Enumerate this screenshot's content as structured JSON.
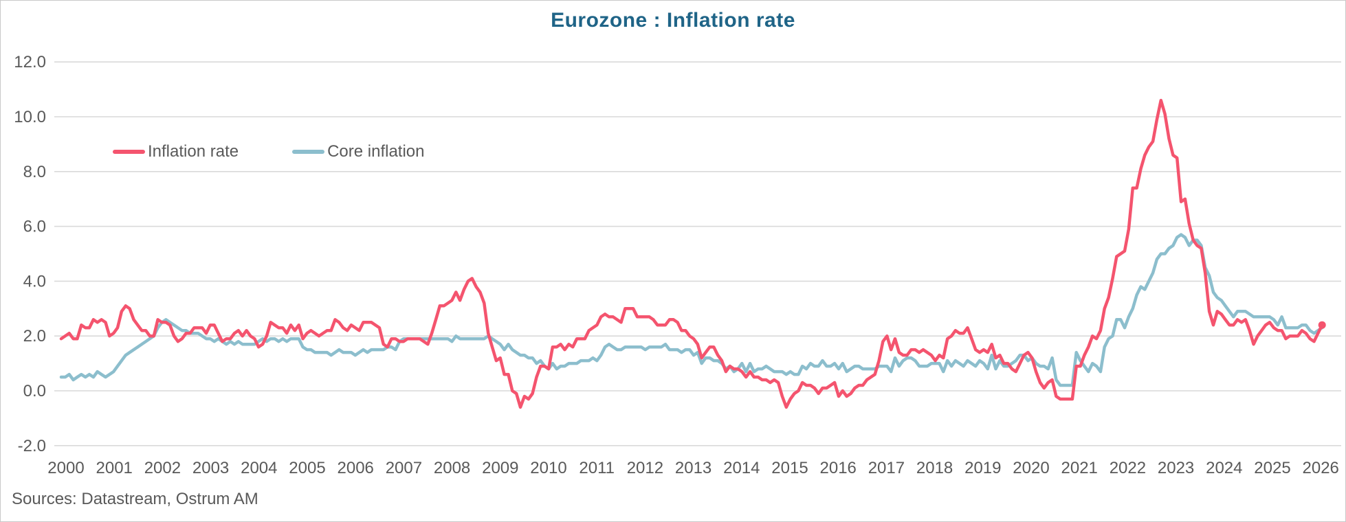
{
  "page": {
    "title": "Eurozone : Inflation rate",
    "source_note": "Sources: Datastream, Ostrum AM"
  },
  "colors": {
    "title": "#1f6487",
    "inflation_rate": "#f4546e",
    "core_inflation": "#8cbecd",
    "axis_text": "#595959",
    "gridline": "#d9d9d9",
    "frame_border": "#c9c9c9"
  },
  "legend": [
    {
      "label": "Inflation rate",
      "color": "#f4546e"
    },
    {
      "label": "Core inflation",
      "color": "#8cbecd"
    }
  ],
  "chart_data": {
    "type": "line",
    "title": "Eurozone : Inflation rate",
    "xlabel": "",
    "ylabel": "",
    "x_unit": "month",
    "x_start": "2000-01",
    "x_end": "2026-02",
    "x_tick_labels": [
      "2000",
      "2001",
      "2002",
      "2003",
      "2004",
      "2005",
      "2006",
      "2007",
      "2008",
      "2009",
      "2010",
      "2011",
      "2012",
      "2013",
      "2014",
      "2015",
      "2016",
      "2017",
      "2018",
      "2019",
      "2020",
      "2021",
      "2022",
      "2023",
      "2024",
      "2025",
      "2026"
    ],
    "y_ticks": [
      12.0,
      10.0,
      8.0,
      6.0,
      4.0,
      2.0,
      0.0,
      -2.0
    ],
    "y_tick_labels": [
      "12.0",
      "10.0",
      "8.0",
      "6.0",
      "4.0",
      "2.0",
      "0.0",
      "-2.0"
    ],
    "ylim": [
      -2.0,
      12.0
    ],
    "grid": "horizontal",
    "legend_position": "inside-top-left",
    "series": [
      {
        "name": "Inflation rate",
        "color": "#f4546e",
        "line_width": 4.5,
        "end_marker": true,
        "values": [
          1.9,
          2.0,
          2.1,
          1.9,
          1.9,
          2.4,
          2.3,
          2.3,
          2.6,
          2.5,
          2.6,
          2.5,
          2.0,
          2.1,
          2.3,
          2.9,
          3.1,
          3.0,
          2.6,
          2.4,
          2.2,
          2.2,
          2.0,
          2.0,
          2.6,
          2.5,
          2.5,
          2.4,
          2.0,
          1.8,
          1.9,
          2.1,
          2.1,
          2.3,
          2.3,
          2.3,
          2.1,
          2.4,
          2.4,
          2.1,
          1.8,
          1.9,
          1.9,
          2.1,
          2.2,
          2.0,
          2.2,
          2.0,
          1.9,
          1.6,
          1.7,
          2.0,
          2.5,
          2.4,
          2.3,
          2.3,
          2.1,
          2.4,
          2.2,
          2.4,
          1.9,
          2.1,
          2.2,
          2.1,
          2.0,
          2.1,
          2.2,
          2.2,
          2.6,
          2.5,
          2.3,
          2.2,
          2.4,
          2.3,
          2.2,
          2.5,
          2.5,
          2.5,
          2.4,
          2.3,
          1.7,
          1.6,
          1.9,
          1.9,
          1.8,
          1.8,
          1.9,
          1.9,
          1.9,
          1.9,
          1.8,
          1.7,
          2.1,
          2.6,
          3.1,
          3.1,
          3.2,
          3.3,
          3.6,
          3.3,
          3.7,
          4.0,
          4.1,
          3.8,
          3.6,
          3.2,
          2.1,
          1.6,
          1.1,
          1.2,
          0.6,
          0.6,
          0.0,
          -0.1,
          -0.6,
          -0.2,
          -0.3,
          -0.1,
          0.5,
          0.9,
          0.9,
          0.8,
          1.6,
          1.6,
          1.7,
          1.5,
          1.7,
          1.6,
          1.9,
          1.9,
          1.9,
          2.2,
          2.3,
          2.4,
          2.7,
          2.8,
          2.7,
          2.7,
          2.6,
          2.5,
          3.0,
          3.0,
          3.0,
          2.7,
          2.7,
          2.7,
          2.7,
          2.6,
          2.4,
          2.4,
          2.4,
          2.6,
          2.6,
          2.5,
          2.2,
          2.2,
          2.0,
          1.9,
          1.7,
          1.2,
          1.4,
          1.6,
          1.6,
          1.3,
          1.1,
          0.7,
          0.9,
          0.8,
          0.8,
          0.7,
          0.5,
          0.7,
          0.5,
          0.5,
          0.4,
          0.4,
          0.3,
          0.4,
          0.3,
          -0.2,
          -0.6,
          -0.3,
          -0.1,
          0.0,
          0.3,
          0.2,
          0.2,
          0.1,
          -0.1,
          0.1,
          0.1,
          0.2,
          0.3,
          -0.2,
          0.0,
          -0.2,
          -0.1,
          0.1,
          0.2,
          0.2,
          0.4,
          0.5,
          0.6,
          1.1,
          1.8,
          2.0,
          1.5,
          1.9,
          1.4,
          1.3,
          1.3,
          1.5,
          1.5,
          1.4,
          1.5,
          1.4,
          1.3,
          1.1,
          1.3,
          1.2,
          1.9,
          2.0,
          2.2,
          2.1,
          2.1,
          2.3,
          1.9,
          1.5,
          1.4,
          1.5,
          1.4,
          1.7,
          1.2,
          1.3,
          1.0,
          1.0,
          0.8,
          0.7,
          1.0,
          1.3,
          1.4,
          1.2,
          0.7,
          0.3,
          0.1,
          0.3,
          0.4,
          -0.2,
          -0.3,
          -0.3,
          -0.3,
          -0.3,
          0.9,
          0.9,
          1.3,
          1.6,
          2.0,
          1.9,
          2.2,
          3.0,
          3.4,
          4.1,
          4.9,
          5.0,
          5.1,
          5.9,
          7.4,
          7.4,
          8.1,
          8.6,
          8.9,
          9.1,
          9.9,
          10.6,
          10.1,
          9.2,
          8.6,
          8.5,
          6.9,
          7.0,
          6.1,
          5.5,
          5.3,
          5.2,
          4.3,
          2.9,
          2.4,
          2.9,
          2.8,
          2.6,
          2.4,
          2.4,
          2.6,
          2.5,
          2.6,
          2.2,
          1.7,
          2.0,
          2.2,
          2.4,
          2.5,
          2.3,
          2.2,
          2.2,
          1.9,
          2.0,
          2.0,
          2.0,
          2.2,
          2.1,
          1.9,
          1.8,
          2.1,
          2.4
        ]
      },
      {
        "name": "Core inflation",
        "color": "#8cbecd",
        "line_width": 4.5,
        "end_marker": false,
        "values": [
          0.5,
          0.5,
          0.6,
          0.4,
          0.5,
          0.6,
          0.5,
          0.6,
          0.5,
          0.7,
          0.6,
          0.5,
          0.6,
          0.7,
          0.9,
          1.1,
          1.3,
          1.4,
          1.5,
          1.6,
          1.7,
          1.8,
          1.9,
          2.0,
          2.3,
          2.5,
          2.6,
          2.5,
          2.4,
          2.3,
          2.2,
          2.2,
          2.1,
          2.1,
          2.1,
          2.0,
          1.9,
          1.9,
          1.8,
          1.9,
          1.8,
          1.7,
          1.8,
          1.7,
          1.8,
          1.7,
          1.7,
          1.7,
          1.7,
          1.8,
          1.9,
          1.8,
          1.9,
          1.9,
          1.8,
          1.9,
          1.8,
          1.9,
          1.9,
          1.9,
          1.6,
          1.5,
          1.5,
          1.4,
          1.4,
          1.4,
          1.4,
          1.3,
          1.4,
          1.5,
          1.4,
          1.4,
          1.4,
          1.3,
          1.4,
          1.5,
          1.4,
          1.5,
          1.5,
          1.5,
          1.5,
          1.6,
          1.6,
          1.5,
          1.8,
          1.9,
          1.9,
          1.9,
          1.9,
          1.9,
          1.9,
          1.9,
          1.9,
          1.9,
          1.9,
          1.9,
          1.9,
          1.8,
          2.0,
          1.9,
          1.9,
          1.9,
          1.9,
          1.9,
          1.9,
          1.9,
          2.0,
          1.9,
          1.8,
          1.7,
          1.5,
          1.7,
          1.5,
          1.4,
          1.3,
          1.3,
          1.2,
          1.2,
          1.0,
          1.1,
          0.9,
          0.8,
          1.0,
          0.8,
          0.9,
          0.9,
          1.0,
          1.0,
          1.0,
          1.1,
          1.1,
          1.1,
          1.2,
          1.1,
          1.3,
          1.6,
          1.7,
          1.6,
          1.5,
          1.5,
          1.6,
          1.6,
          1.6,
          1.6,
          1.6,
          1.5,
          1.6,
          1.6,
          1.6,
          1.6,
          1.7,
          1.5,
          1.5,
          1.5,
          1.4,
          1.5,
          1.5,
          1.3,
          1.4,
          1.0,
          1.2,
          1.2,
          1.1,
          1.1,
          1.0,
          0.8,
          0.9,
          0.7,
          0.8,
          1.0,
          0.7,
          1.0,
          0.7,
          0.8,
          0.8,
          0.9,
          0.8,
          0.7,
          0.7,
          0.7,
          0.6,
          0.7,
          0.6,
          0.6,
          0.9,
          0.8,
          1.0,
          0.9,
          0.9,
          1.1,
          0.9,
          0.9,
          1.0,
          0.8,
          1.0,
          0.7,
          0.8,
          0.9,
          0.9,
          0.8,
          0.8,
          0.8,
          0.8,
          0.9,
          0.9,
          0.9,
          0.7,
          1.2,
          0.9,
          1.1,
          1.2,
          1.2,
          1.1,
          0.9,
          0.9,
          0.9,
          1.0,
          1.0,
          1.0,
          0.7,
          1.1,
          0.9,
          1.1,
          1.0,
          0.9,
          1.1,
          1.0,
          0.9,
          1.1,
          1.0,
          0.8,
          1.3,
          0.8,
          1.1,
          0.9,
          0.9,
          1.0,
          1.1,
          1.3,
          1.3,
          1.1,
          1.2,
          1.0,
          0.9,
          0.9,
          0.8,
          1.2,
          0.4,
          0.2,
          0.2,
          0.2,
          0.2,
          1.4,
          1.1,
          0.9,
          0.7,
          1.0,
          0.9,
          0.7,
          1.6,
          1.9,
          2.0,
          2.6,
          2.6,
          2.3,
          2.7,
          3.0,
          3.5,
          3.8,
          3.7,
          4.0,
          4.3,
          4.8,
          5.0,
          5.0,
          5.2,
          5.3,
          5.6,
          5.7,
          5.6,
          5.3,
          5.5,
          5.5,
          5.3,
          4.5,
          4.2,
          3.6,
          3.4,
          3.3,
          3.1,
          2.9,
          2.7,
          2.9,
          2.9,
          2.9,
          2.8,
          2.7,
          2.7,
          2.7,
          2.7,
          2.7,
          2.6,
          2.4,
          2.7,
          2.3,
          2.3,
          2.3,
          2.3,
          2.4,
          2.4,
          2.2,
          2.1,
          2.2,
          2.3
        ]
      }
    ]
  }
}
